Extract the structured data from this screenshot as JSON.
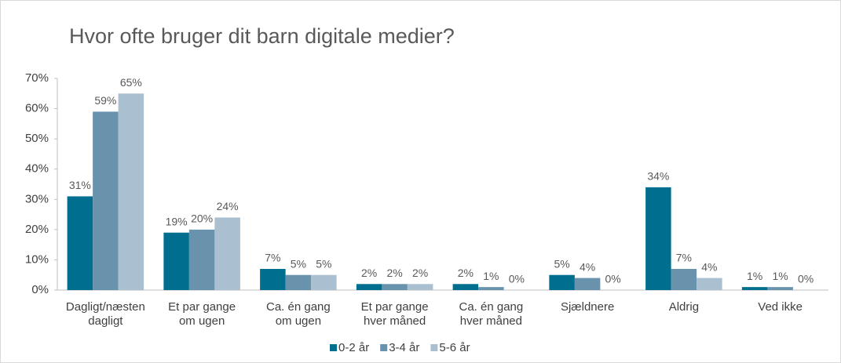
{
  "chart_data": {
    "type": "bar",
    "title": "Hvor ofte bruger dit barn digitale medier?",
    "categories": [
      "Dagligt/næsten\ndagligt",
      "Et par gange\nom ugen",
      "Ca. én gang\nom ugen",
      "Et par gange\nhver måned",
      "Ca. én gang\nhver måned",
      "Sjældnere",
      "Aldrig",
      "Ved ikke"
    ],
    "series": [
      {
        "name": "0-2 år",
        "color": "#006e8f",
        "values": [
          31,
          19,
          7,
          2,
          2,
          5,
          34,
          1
        ],
        "value_labels": [
          "31%",
          "19%",
          "7%",
          "2%",
          "2%",
          "5%",
          "34%",
          "1%"
        ]
      },
      {
        "name": "3-4 år",
        "color": "#6993ad",
        "values": [
          59,
          20,
          5,
          2,
          1,
          4,
          7,
          1
        ],
        "value_labels": [
          "59%",
          "20%",
          "5%",
          "2%",
          "1%",
          "4%",
          "7%",
          "1%"
        ]
      },
      {
        "name": "5-6 år",
        "color": "#aabfcf",
        "values": [
          65,
          24,
          5,
          2,
          0,
          0,
          4,
          0
        ],
        "value_labels": [
          "65%",
          "24%",
          "5%",
          "2%",
          "0%",
          "0%",
          "4%",
          "0%"
        ]
      }
    ],
    "ylim": [
      0,
      70
    ],
    "yticks": [
      {
        "value": 0,
        "label": "0%"
      },
      {
        "value": 10,
        "label": "10%"
      },
      {
        "value": 20,
        "label": "20%"
      },
      {
        "value": 30,
        "label": "30%"
      },
      {
        "value": 40,
        "label": "40%"
      },
      {
        "value": 50,
        "label": "50%"
      },
      {
        "value": 60,
        "label": "60%"
      },
      {
        "value": 70,
        "label": "70%"
      }
    ],
    "legend": "bottom"
  }
}
